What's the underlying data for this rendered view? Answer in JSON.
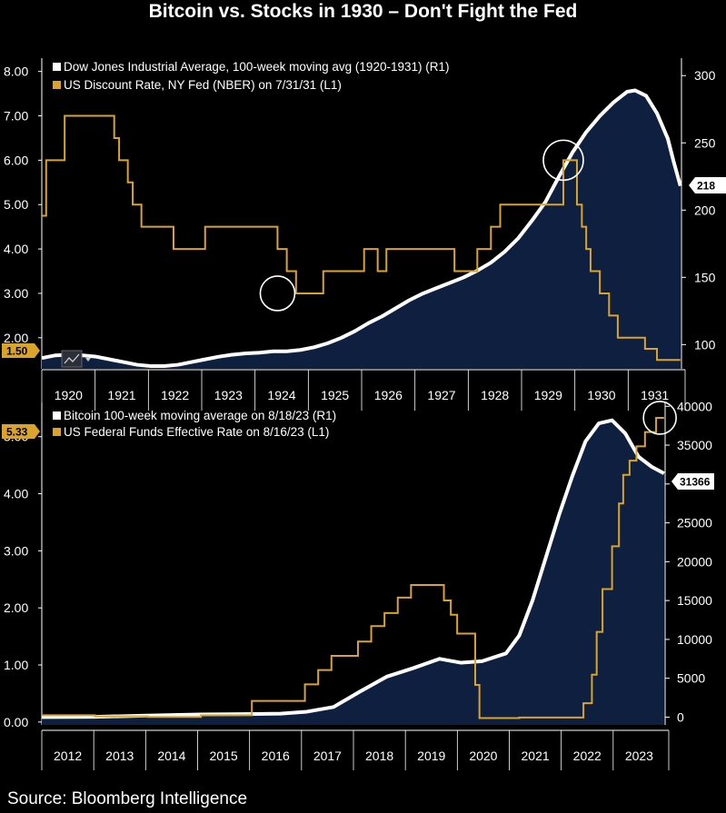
{
  "title": "Bitcoin vs. Stocks in 1930 – Don't Fight the Fed",
  "source": "Source: Bloomberg Intelligence",
  "colors": {
    "area_fill": "#0e1f3f",
    "line_white": "#ffffff",
    "line_orange": "#d9a32c",
    "background": "#000000"
  },
  "chart_data": [
    {
      "type": "area",
      "legend": [
        "Dow Jones Industrial Average, 100-week moving avg (1920-1931) (R1)",
        "US Discount Rate, NY Fed (NBER) on 7/31/31 (L1)"
      ],
      "x_categories": [
        "1920",
        "1921",
        "1922",
        "1923",
        "1924",
        "1925",
        "1926",
        "1927",
        "1928",
        "1929",
        "1930",
        "1931"
      ],
      "x_range": [
        1920.0,
        1931.75
      ],
      "left_axis": {
        "ticks": [
          "8.00",
          "7.00",
          "6.00",
          "5.00",
          "4.00",
          "3.00",
          "2.00"
        ],
        "range": [
          1.3,
          8.3
        ],
        "last_value": "1.50"
      },
      "right_axis": {
        "ticks": [
          "300",
          "250",
          "200",
          "150",
          "100"
        ],
        "range": [
          82,
          313
        ],
        "last_value": "218"
      },
      "series": [
        {
          "name": "Dow Jones Industrial Average, 100-week moving avg (1920-1931)",
          "axis": "right",
          "style": "area",
          "points": [
            [
              1920.0,
              90
            ],
            [
              1920.25,
              92
            ],
            [
              1920.5,
              92.5
            ],
            [
              1920.75,
              92
            ],
            [
              1921.0,
              91
            ],
            [
              1921.25,
              89
            ],
            [
              1921.5,
              87
            ],
            [
              1921.75,
              85
            ],
            [
              1922.0,
              84
            ],
            [
              1922.25,
              84
            ],
            [
              1922.5,
              85
            ],
            [
              1922.75,
              87
            ],
            [
              1923.0,
              89
            ],
            [
              1923.25,
              91
            ],
            [
              1923.5,
              92.5
            ],
            [
              1923.75,
              93.5
            ],
            [
              1924.0,
              94
            ],
            [
              1924.25,
              95
            ],
            [
              1924.5,
              95
            ],
            [
              1924.75,
              96
            ],
            [
              1925.0,
              98
            ],
            [
              1925.25,
              101
            ],
            [
              1925.5,
              105
            ],
            [
              1925.75,
              110
            ],
            [
              1926.0,
              116
            ],
            [
              1926.25,
              121
            ],
            [
              1926.5,
              127
            ],
            [
              1926.75,
              133
            ],
            [
              1927.0,
              138
            ],
            [
              1927.25,
              142
            ],
            [
              1927.5,
              146
            ],
            [
              1927.75,
              150
            ],
            [
              1928.0,
              155
            ],
            [
              1928.25,
              161
            ],
            [
              1928.5,
              169
            ],
            [
              1928.75,
              179
            ],
            [
              1929.0,
              192
            ],
            [
              1929.25,
              206
            ],
            [
              1929.5,
              225
            ],
            [
              1929.75,
              243
            ],
            [
              1930.0,
              258
            ],
            [
              1930.25,
              270
            ],
            [
              1930.5,
              280
            ],
            [
              1930.75,
              288
            ],
            [
              1930.9,
              289
            ],
            [
              1931.1,
              285
            ],
            [
              1931.3,
              272
            ],
            [
              1931.5,
              253
            ],
            [
              1931.6,
              237
            ],
            [
              1931.73,
              218
            ]
          ]
        },
        {
          "name": "US Discount Rate, NY Fed (NBER)",
          "axis": "left",
          "style": "step",
          "points": [
            [
              1920.0,
              4.75
            ],
            [
              1920.08,
              6.0
            ],
            [
              1920.42,
              7.0
            ],
            [
              1921.33,
              6.5
            ],
            [
              1921.42,
              6.0
            ],
            [
              1921.58,
              5.5
            ],
            [
              1921.67,
              5.0
            ],
            [
              1921.83,
              4.5
            ],
            [
              1922.42,
              4.0
            ],
            [
              1923.0,
              4.5
            ],
            [
              1924.33,
              4.0
            ],
            [
              1924.5,
              3.5
            ],
            [
              1924.67,
              3.0
            ],
            [
              1925.17,
              3.5
            ],
            [
              1925.92,
              4.0
            ],
            [
              1926.17,
              3.5
            ],
            [
              1926.33,
              4.0
            ],
            [
              1927.58,
              3.5
            ],
            [
              1928.0,
              4.0
            ],
            [
              1928.25,
              4.5
            ],
            [
              1928.42,
              5.0
            ],
            [
              1929.58,
              6.0
            ],
            [
              1929.83,
              5.0
            ],
            [
              1929.92,
              4.5
            ],
            [
              1930.0,
              4.0
            ],
            [
              1930.08,
              3.5
            ],
            [
              1930.25,
              3.0
            ],
            [
              1930.42,
              2.5
            ],
            [
              1930.58,
              2.0
            ],
            [
              1931.08,
              1.75
            ],
            [
              1931.3,
              1.5
            ],
            [
              1931.73,
              1.5
            ]
          ]
        }
      ]
    },
    {
      "type": "area",
      "legend": [
        "Bitcoin 100-week moving average on 8/18/23 (R1)",
        "US Federal Funds Effective Rate on 8/16/23 (L1)"
      ],
      "x_categories": [
        "2012",
        "2013",
        "2014",
        "2015",
        "2016",
        "2017",
        "2018",
        "2019",
        "2020",
        "2021",
        "2022",
        "2023"
      ],
      "x_range": [
        2012.0,
        2023.75
      ],
      "left_axis": {
        "ticks": [
          "5.00",
          "4.00",
          "3.00",
          "2.00",
          "1.00",
          "0.00"
        ],
        "range": [
          -0.05,
          5.6
        ],
        "last_value": "5.33"
      },
      "right_axis": {
        "ticks": [
          "40000",
          "35000",
          "30000",
          "25000",
          "20000",
          "15000",
          "10000",
          "5000",
          "0"
        ],
        "range": [
          -1000,
          40500
        ],
        "last_value": "31366"
      },
      "series": [
        {
          "name": "Bitcoin 100-week moving average",
          "axis": "right",
          "style": "area",
          "points": [
            [
              2012.0,
              5
            ],
            [
              2013.0,
              40
            ],
            [
              2014.0,
              200
            ],
            [
              2015.0,
              350
            ],
            [
              2016.0,
              400
            ],
            [
              2016.5,
              450
            ],
            [
              2017.0,
              700
            ],
            [
              2017.5,
              1300
            ],
            [
              2018.0,
              3300
            ],
            [
              2018.5,
              5200
            ],
            [
              2019.0,
              6300
            ],
            [
              2019.5,
              7500
            ],
            [
              2019.9,
              7000
            ],
            [
              2020.3,
              7200
            ],
            [
              2020.75,
              8200
            ],
            [
              2021.0,
              10500
            ],
            [
              2021.25,
              15000
            ],
            [
              2021.5,
              20500
            ],
            [
              2021.75,
              26000
            ],
            [
              2022.0,
              31000
            ],
            [
              2022.25,
              35500
            ],
            [
              2022.5,
              37800
            ],
            [
              2022.75,
              38200
            ],
            [
              2023.0,
              36500
            ],
            [
              2023.25,
              33500
            ],
            [
              2023.5,
              32200
            ],
            [
              2023.73,
              31366
            ]
          ]
        },
        {
          "name": "US Federal Funds Effective Rate",
          "axis": "left",
          "style": "step",
          "points": [
            [
              2012.0,
              0.12
            ],
            [
              2013.0,
              0.1
            ],
            [
              2014.0,
              0.09
            ],
            [
              2015.0,
              0.12
            ],
            [
              2015.96,
              0.37
            ],
            [
              2016.96,
              0.66
            ],
            [
              2017.21,
              0.91
            ],
            [
              2017.46,
              1.16
            ],
            [
              2017.96,
              1.41
            ],
            [
              2018.21,
              1.68
            ],
            [
              2018.46,
              1.91
            ],
            [
              2018.71,
              2.18
            ],
            [
              2018.96,
              2.4
            ],
            [
              2019.58,
              2.13
            ],
            [
              2019.71,
              1.88
            ],
            [
              2019.83,
              1.55
            ],
            [
              2020.17,
              0.65
            ],
            [
              2020.25,
              0.07
            ],
            [
              2021.0,
              0.08
            ],
            [
              2022.0,
              0.08
            ],
            [
              2022.21,
              0.33
            ],
            [
              2022.37,
              0.83
            ],
            [
              2022.46,
              1.58
            ],
            [
              2022.57,
              2.33
            ],
            [
              2022.75,
              3.08
            ],
            [
              2022.88,
              3.83
            ],
            [
              2022.96,
              4.33
            ],
            [
              2023.08,
              4.58
            ],
            [
              2023.21,
              4.83
            ],
            [
              2023.37,
              5.08
            ],
            [
              2023.58,
              5.33
            ],
            [
              2023.73,
              5.33
            ]
          ]
        }
      ]
    }
  ]
}
